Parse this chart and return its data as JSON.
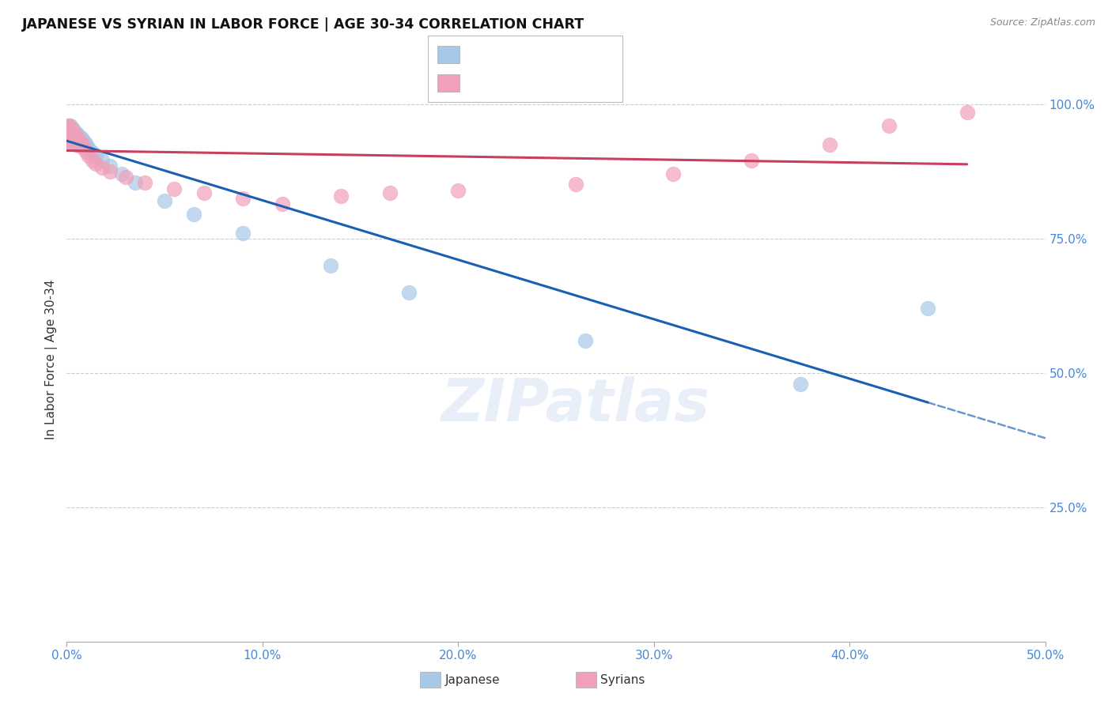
{
  "title": "JAPANESE VS SYRIAN IN LABOR FORCE | AGE 30-34 CORRELATION CHART",
  "source": "Source: ZipAtlas.com",
  "ylabel": "In Labor Force | Age 30-34",
  "japanese_color": "#a8c8e8",
  "syrian_color": "#f0a0b8",
  "japanese_line_color": "#1a5fb4",
  "syrian_line_color": "#c84060",
  "background_color": "#ffffff",
  "japanese_x": [
    0.001,
    0.001,
    0.001,
    0.001,
    0.001,
    0.002,
    0.002,
    0.002,
    0.002,
    0.002,
    0.002,
    0.002,
    0.003,
    0.003,
    0.003,
    0.003,
    0.003,
    0.004,
    0.004,
    0.004,
    0.005,
    0.005,
    0.005,
    0.006,
    0.006,
    0.007,
    0.007,
    0.008,
    0.008,
    0.009,
    0.01,
    0.011,
    0.013,
    0.015,
    0.018,
    0.022,
    0.028,
    0.035,
    0.05,
    0.065,
    0.09,
    0.135,
    0.175,
    0.265,
    0.375,
    0.44
  ],
  "japanese_y": [
    0.96,
    0.955,
    0.95,
    0.945,
    0.94,
    0.96,
    0.955,
    0.95,
    0.945,
    0.94,
    0.935,
    0.93,
    0.955,
    0.95,
    0.945,
    0.94,
    0.935,
    0.95,
    0.945,
    0.935,
    0.945,
    0.938,
    0.932,
    0.942,
    0.935,
    0.938,
    0.93,
    0.935,
    0.928,
    0.93,
    0.925,
    0.918,
    0.91,
    0.905,
    0.895,
    0.885,
    0.87,
    0.855,
    0.82,
    0.795,
    0.76,
    0.7,
    0.65,
    0.56,
    0.48,
    0.62
  ],
  "syrian_x": [
    0.001,
    0.001,
    0.001,
    0.001,
    0.001,
    0.002,
    0.002,
    0.002,
    0.002,
    0.002,
    0.002,
    0.003,
    0.003,
    0.003,
    0.003,
    0.004,
    0.004,
    0.004,
    0.005,
    0.005,
    0.005,
    0.006,
    0.006,
    0.007,
    0.007,
    0.008,
    0.009,
    0.01,
    0.011,
    0.013,
    0.015,
    0.018,
    0.022,
    0.03,
    0.04,
    0.055,
    0.07,
    0.09,
    0.11,
    0.14,
    0.165,
    0.2,
    0.26,
    0.31,
    0.35,
    0.39,
    0.42,
    0.46
  ],
  "syrian_y": [
    0.96,
    0.95,
    0.945,
    0.94,
    0.935,
    0.958,
    0.95,
    0.945,
    0.938,
    0.933,
    0.928,
    0.948,
    0.942,
    0.935,
    0.928,
    0.945,
    0.938,
    0.93,
    0.94,
    0.932,
    0.925,
    0.935,
    0.928,
    0.93,
    0.922,
    0.925,
    0.918,
    0.912,
    0.905,
    0.895,
    0.89,
    0.882,
    0.875,
    0.865,
    0.855,
    0.842,
    0.835,
    0.825,
    0.815,
    0.83,
    0.835,
    0.84,
    0.852,
    0.87,
    0.895,
    0.925,
    0.96,
    0.985
  ],
  "xlim": [
    0.0,
    0.5
  ],
  "ylim": [
    0.0,
    1.05
  ],
  "xticks": [
    0.0,
    0.1,
    0.2,
    0.3,
    0.4,
    0.5
  ],
  "yticks": [
    0.0,
    0.25,
    0.5,
    0.75,
    1.0
  ],
  "ytick_labels": [
    "",
    "25.0%",
    "50.0%",
    "75.0%",
    "100.0%"
  ],
  "xtick_labels": [
    "0.0%",
    "10.0%",
    "20.0%",
    "30.0%",
    "40.0%",
    "50.0%"
  ]
}
